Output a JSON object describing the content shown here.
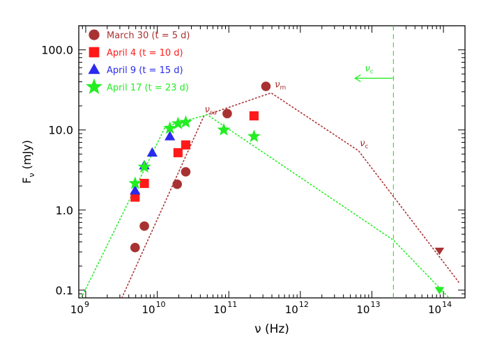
{
  "chart_data": {
    "type": "scatter",
    "xscale": "log",
    "yscale": "log",
    "xlim": [
      800000000,
      200000000000000
    ],
    "ylim": [
      0.08,
      200
    ],
    "xlabel": "ν (Hz)",
    "ylabel_main": "F",
    "ylabel_sub": "ν",
    "ylabel_unit": " (mJy)",
    "x_ticks": [
      {
        "value": 1000000000.0,
        "base": "10",
        "exp": "9"
      },
      {
        "value": 10000000000.0,
        "base": "10",
        "exp": "10"
      },
      {
        "value": 100000000000.0,
        "base": "10",
        "exp": "11"
      },
      {
        "value": 1000000000000.0,
        "base": "10",
        "exp": "12"
      },
      {
        "value": 10000000000000.0,
        "base": "10",
        "exp": "13"
      },
      {
        "value": 100000000000000.0,
        "base": "10",
        "exp": "14"
      }
    ],
    "y_ticks": [
      {
        "value": 0.1,
        "label": "0.1"
      },
      {
        "value": 1,
        "label": "1.0"
      },
      {
        "value": 10,
        "label": "10.0"
      },
      {
        "value": 100,
        "label": "100.0"
      }
    ],
    "legend_position": "top-left",
    "series": [
      {
        "name": "March 30 (t = 5 d)",
        "color": "#a83232",
        "marker": "circle",
        "points": [
          {
            "x": 4900000000.0,
            "y": 0.34
          },
          {
            "x": 6600000000.0,
            "y": 0.63
          },
          {
            "x": 19000000000.0,
            "y": 2.1
          },
          {
            "x": 25000000000.0,
            "y": 3.0
          },
          {
            "x": 95000000000.0,
            "y": 16
          },
          {
            "x": 330000000000.0,
            "y": 35
          }
        ],
        "upper_limits": [
          {
            "x": 88000000000000.0,
            "y": 0.31
          }
        ],
        "model_line": [
          {
            "x": 3200000000.0,
            "y": 0.08
          },
          {
            "x": 45000000000.0,
            "y": 15
          },
          {
            "x": 390000000000.0,
            "y": 29
          },
          {
            "x": 6500000000000.0,
            "y": 5.5
          },
          {
            "x": 170000000000000.0,
            "y": 0.12
          }
        ]
      },
      {
        "name": "April 4 (t = 10 d)",
        "color": "#ff1a1a",
        "marker": "square",
        "points": [
          {
            "x": 4900000000.0,
            "y": 1.45
          },
          {
            "x": 6600000000.0,
            "y": 2.15
          },
          {
            "x": 19500000000.0,
            "y": 5.2
          },
          {
            "x": 25000000000.0,
            "y": 6.5
          },
          {
            "x": 225000000000.0,
            "y": 15
          }
        ]
      },
      {
        "name": "April 9 (t = 15 d)",
        "color": "#2a2aee",
        "marker": "triangle",
        "points": [
          {
            "x": 4900000000.0,
            "y": 1.75
          },
          {
            "x": 6600000000.0,
            "y": 3.6
          },
          {
            "x": 8500000000.0,
            "y": 5.2
          },
          {
            "x": 15000000000.0,
            "y": 8.3
          }
        ]
      },
      {
        "name": "April 17 (t = 23 d)",
        "color": "#22ee22",
        "marker": "star",
        "points": [
          {
            "x": 4900000000.0,
            "y": 2.15
          },
          {
            "x": 6600000000.0,
            "y": 3.45
          },
          {
            "x": 15000000000.0,
            "y": 10.5
          },
          {
            "x": 19500000000.0,
            "y": 12
          },
          {
            "x": 25000000000.0,
            "y": 12.5
          },
          {
            "x": 85000000000.0,
            "y": 10
          },
          {
            "x": 225000000000.0,
            "y": 8.3
          }
        ],
        "upper_limits": [
          {
            "x": 88000000000000.0,
            "y": 0.1
          }
        ],
        "model_line": [
          {
            "x": 870000000.0,
            "y": 0.08
          },
          {
            "x": 13000000000.0,
            "y": 11
          },
          {
            "x": 50000000000.0,
            "y": 15.5
          },
          {
            "x": 20000000000000.0,
            "y": 0.42
          },
          {
            "x": 120000000000000.0,
            "y": 0.08
          }
        ]
      }
    ],
    "vertical_line": {
      "x": 20000000000000.0,
      "color": "#22ee22"
    },
    "annotations": [
      {
        "text": "ν",
        "sub": "sa",
        "x": 46000000000.0,
        "y": 16.5,
        "color": "#a83232"
      },
      {
        "text": "ν",
        "sub": "m",
        "x": 440000000000.0,
        "y": 34,
        "color": "#a83232"
      },
      {
        "text": "ν",
        "sub": "c",
        "x": 6800000000000.0,
        "y": 6.3,
        "color": "#a83232"
      },
      {
        "text": "ν",
        "sub": "c",
        "x": 8000000000000.0,
        "y": 54,
        "color": "#22ee22"
      }
    ]
  }
}
